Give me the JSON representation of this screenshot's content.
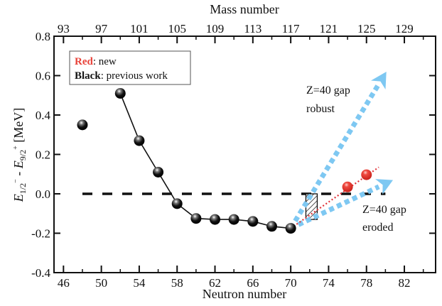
{
  "chart_data": {
    "type": "scatter",
    "title": "",
    "xlabel": "Neutron number",
    "x2label": "Mass number",
    "ylabel": {
      "main": "E",
      "sub1": "1/2",
      "sup1": "−",
      "dash": " - ",
      "main2": "E",
      "sub2": "9/2",
      "sup2": "+",
      "units": " [MeV]"
    },
    "xlim": [
      45,
      85.3
    ],
    "ylim": [
      -0.4,
      0.8
    ],
    "x_ticks_major": [
      46,
      50,
      54,
      58,
      62,
      66,
      70,
      74,
      78,
      82
    ],
    "x_ticks_minor": [
      48,
      52,
      56,
      60,
      64,
      68,
      72,
      76,
      80,
      84
    ],
    "x2_ticks_major": [
      {
        "label": "93",
        "n": 46
      },
      {
        "label": "97",
        "n": 50
      },
      {
        "label": "101",
        "n": 54
      },
      {
        "label": "105",
        "n": 58
      },
      {
        "label": "109",
        "n": 62
      },
      {
        "label": "113",
        "n": 66
      },
      {
        "label": "117",
        "n": 70
      },
      {
        "label": "121",
        "n": 74
      },
      {
        "label": "125",
        "n": 78
      },
      {
        "label": "129",
        "n": 82
      }
    ],
    "y_ticks": [
      {
        "value": -0.4,
        "label": "-0.4"
      },
      {
        "value": -0.2,
        "label": "-0.2"
      },
      {
        "value": 0.0,
        "label": "0.0"
      },
      {
        "value": 0.2,
        "label": "0.2"
      },
      {
        "value": 0.4,
        "label": "0.4"
      },
      {
        "value": 0.6,
        "label": "0.6"
      },
      {
        "value": 0.8,
        "label": "0.8"
      }
    ],
    "series": [
      {
        "name": "previous work",
        "color": "#111111",
        "points": [
          {
            "x": 48,
            "y": 0.35
          },
          {
            "x": 52,
            "y": 0.51
          },
          {
            "x": 54,
            "y": 0.27
          },
          {
            "x": 56,
            "y": 0.11
          },
          {
            "x": 58,
            "y": -0.05
          },
          {
            "x": 60,
            "y": -0.125
          },
          {
            "x": 62,
            "y": -0.13
          },
          {
            "x": 64,
            "y": -0.13
          },
          {
            "x": 66,
            "y": -0.14
          },
          {
            "x": 68,
            "y": -0.165
          },
          {
            "x": 70,
            "y": -0.175
          }
        ],
        "line_from_index": 1
      },
      {
        "name": "new",
        "color": "#e8433a",
        "points": [
          {
            "x": 76,
            "y": 0.035
          },
          {
            "x": 78,
            "y": 0.097
          }
        ],
        "trend_line": {
          "from": {
            "x": 70,
            "y": -0.175
          },
          "to": {
            "x": 79.3,
            "y": 0.135
          }
        }
      }
    ],
    "reference_line": {
      "y": 0.0,
      "x_from": 48,
      "x_to": 80,
      "style": "dashed"
    },
    "shaded_region": {
      "x_from": 71.6,
      "x_to": 72.8,
      "y_from": -0.13,
      "y_to": 0.0,
      "pattern": "hatched"
    },
    "arrows": [
      {
        "name": "robust",
        "color": "#7ec8f2",
        "from": {
          "x": 70,
          "y": -0.175
        },
        "to": {
          "x": 80.1,
          "y": 0.62
        }
      },
      {
        "name": "eroded",
        "color": "#7ec8f2",
        "from": {
          "x": 70,
          "y": -0.175
        },
        "to": {
          "x": 80.8,
          "y": 0.07
        }
      }
    ],
    "annotations": [
      {
        "lines": [
          "Z=40 gap",
          "robust"
        ],
        "x": 73,
        "y": 0.52
      },
      {
        "lines": [
          "Z=40 gap",
          "eroded"
        ],
        "x": 78.3,
        "y": -0.11
      }
    ],
    "legend": {
      "placement": "top-left",
      "entries": [
        {
          "key": "Red",
          "text": ": new",
          "color": "#e8433a"
        },
        {
          "key": "Black",
          "text": ": previous work",
          "color": "#111111"
        }
      ]
    },
    "grid": false
  }
}
